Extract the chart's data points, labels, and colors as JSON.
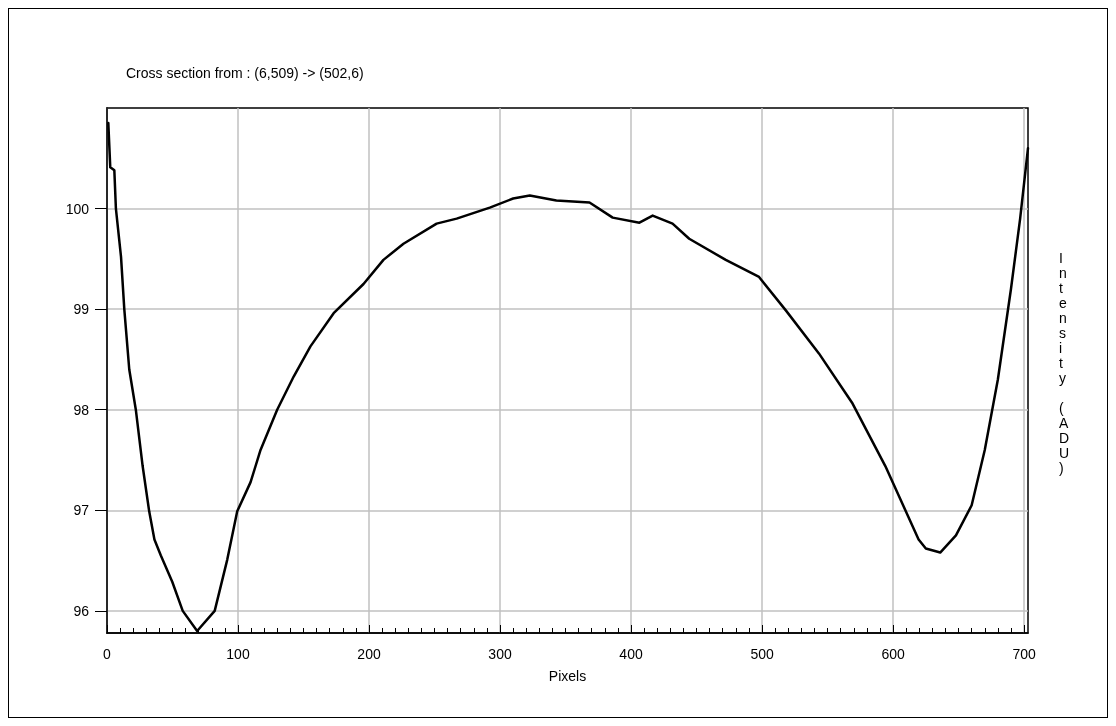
{
  "chart_data": {
    "type": "line",
    "title": "Cross section from : (6,509) -> (502,6)",
    "xlabel": "Pixels",
    "ylabel": "Intensity (ADU)",
    "x": [
      1,
      2.5,
      5.6,
      6.8,
      10.7,
      13.2,
      17,
      22,
      27.2,
      32.2,
      36.2,
      41.1,
      49.8,
      57.8,
      68.8,
      82.2,
      91.8,
      99.4,
      109.6,
      117.2,
      129.9,
      142.5,
      155.3,
      173,
      195.8,
      211,
      226.3,
      251.6,
      266.9,
      292.2,
      310,
      322.7,
      343,
      368.3,
      386,
      406.4,
      416.5,
      431.7,
      444.4,
      472.3,
      497.7,
      518,
      543.4,
      568.7,
      594.1,
      619.5,
      625,
      636,
      648,
      660,
      670,
      680,
      690,
      697,
      703
    ],
    "series": [
      {
        "color": "#000000",
        "values": [
          100.85,
          100.41,
          100.38,
          100,
          99.52,
          99.0,
          98.4,
          98.0,
          97.44,
          96.99,
          96.71,
          96.55,
          96.29,
          96.0,
          95.8,
          96.0,
          96.51,
          96.99,
          97.28,
          97.6,
          98.0,
          98.33,
          98.63,
          98.96,
          99.25,
          99.49,
          99.65,
          99.85,
          99.9,
          100.01,
          100.1,
          100.13,
          100.08,
          100.06,
          99.91,
          99.86,
          99.93,
          99.85,
          99.7,
          99.49,
          99.32,
          98.99,
          98.56,
          98.07,
          97.44,
          96.71,
          96.62,
          96.58,
          96.75,
          97.05,
          97.6,
          98.3,
          99.2,
          99.9,
          100.6
        ]
      }
    ],
    "xlim": [
      0,
      703
    ],
    "xticks": [
      0,
      100,
      200,
      300,
      400,
      500,
      600,
      700
    ],
    "ylim": [
      95.78,
      101
    ],
    "yticks": [
      96,
      97,
      98,
      99,
      100
    ],
    "grid": true,
    "marker": "none",
    "line_style": "solid"
  }
}
